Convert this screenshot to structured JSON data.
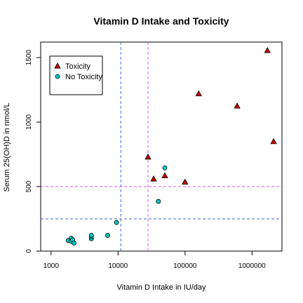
{
  "chart_data": {
    "type": "scatter",
    "title": "Vitamin D Intake and Toxicity",
    "xlabel": "Vitamin D Intake in IU/day",
    "ylabel": "Serum 25(OH)D in nmol/L",
    "x_scale": "log",
    "xlim": [
      700,
      2800000
    ],
    "ylim": [
      0,
      1620
    ],
    "x_ticks": [
      {
        "value": 1000,
        "label": "1000"
      },
      {
        "value": 10000,
        "label": "10000"
      },
      {
        "value": 100000,
        "label": "100000"
      },
      {
        "value": 1000000,
        "label": "1000000"
      }
    ],
    "y_ticks": [
      {
        "value": 0,
        "label": "0"
      },
      {
        "value": 500,
        "label": "500"
      },
      {
        "value": 1000,
        "label": "1000"
      },
      {
        "value": 1500,
        "label": "1500"
      }
    ],
    "grid": false,
    "legend_position": "top-left",
    "reference_lines": [
      {
        "orientation": "vertical",
        "value": 11000,
        "color": "#4466dd"
      },
      {
        "orientation": "vertical",
        "value": 28000,
        "color": "#dd55dd"
      },
      {
        "orientation": "horizontal",
        "value": 500,
        "color": "#dd55dd"
      },
      {
        "orientation": "horizontal",
        "value": 250,
        "color": "#4466dd"
      }
    ],
    "series": [
      {
        "name": "Toxicity",
        "marker": "triangle",
        "color": "#cc0000",
        "points": [
          {
            "x": 28000,
            "y": 730
          },
          {
            "x": 34000,
            "y": 560
          },
          {
            "x": 50000,
            "y": 585
          },
          {
            "x": 100000,
            "y": 535
          },
          {
            "x": 160000,
            "y": 1220
          },
          {
            "x": 600000,
            "y": 1125
          },
          {
            "x": 1700000,
            "y": 1555
          },
          {
            "x": 2100000,
            "y": 850
          }
        ]
      },
      {
        "name": "No Toxicity",
        "marker": "circle",
        "color": "#00cccc",
        "points": [
          {
            "x": 1800,
            "y": 82
          },
          {
            "x": 2000,
            "y": 100
          },
          {
            "x": 2000,
            "y": 76
          },
          {
            "x": 2100,
            "y": 88
          },
          {
            "x": 2200,
            "y": 62
          },
          {
            "x": 4000,
            "y": 95
          },
          {
            "x": 4000,
            "y": 110
          },
          {
            "x": 4000,
            "y": 122
          },
          {
            "x": 7000,
            "y": 122
          },
          {
            "x": 9500,
            "y": 222
          },
          {
            "x": 40000,
            "y": 385
          },
          {
            "x": 50000,
            "y": 645
          }
        ]
      }
    ]
  }
}
